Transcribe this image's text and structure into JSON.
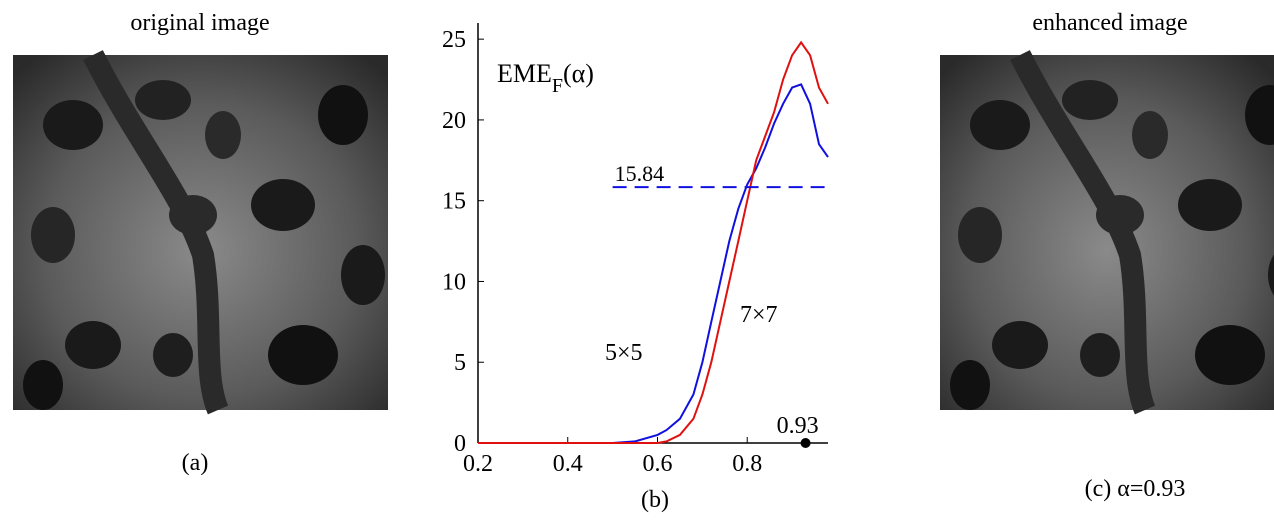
{
  "panels": {
    "left": {
      "title": "original image",
      "caption": "(a)"
    },
    "right": {
      "title": "enhanced image",
      "caption": "(c)  α=0.93"
    },
    "middle_caption": "(b)"
  },
  "chart_data": {
    "type": "line",
    "label_parts": [
      "EME",
      "F",
      "(α)"
    ],
    "x": [
      0.2,
      0.3,
      0.4,
      0.5,
      0.55,
      0.6,
      0.62,
      0.65,
      0.68,
      0.7,
      0.72,
      0.74,
      0.76,
      0.78,
      0.8,
      0.82,
      0.84,
      0.86,
      0.88,
      0.9,
      0.92,
      0.94,
      0.96,
      0.98
    ],
    "series": [
      {
        "name": "5×5",
        "color": "#1010e0",
        "values": [
          0,
          0,
          0,
          0,
          0.1,
          0.5,
          0.8,
          1.5,
          3,
          5,
          7.5,
          10,
          12.5,
          14.5,
          16,
          17,
          18.3,
          19.8,
          21,
          22,
          22.2,
          21,
          18.5,
          17.7
        ]
      },
      {
        "name": "7×7",
        "color": "#e01010",
        "values": [
          0,
          0,
          0,
          0,
          0,
          0,
          0.1,
          0.5,
          1.5,
          3,
          5,
          7.5,
          10,
          12.5,
          15,
          17.5,
          19,
          20.5,
          22.5,
          24,
          24.8,
          24,
          22,
          21
        ]
      }
    ],
    "threshold": {
      "value": 15.84,
      "label": "15.84",
      "xrange": [
        0.5,
        0.98
      ],
      "color": "#1010e0"
    },
    "marker": {
      "value": 0.93,
      "label": "0.93"
    },
    "xlim": [
      0.2,
      0.98
    ],
    "ylim": [
      0,
      26
    ],
    "xticks": [
      0.2,
      0.4,
      0.6,
      0.8
    ],
    "yticks": [
      0,
      5,
      10,
      15,
      20,
      25
    ]
  }
}
